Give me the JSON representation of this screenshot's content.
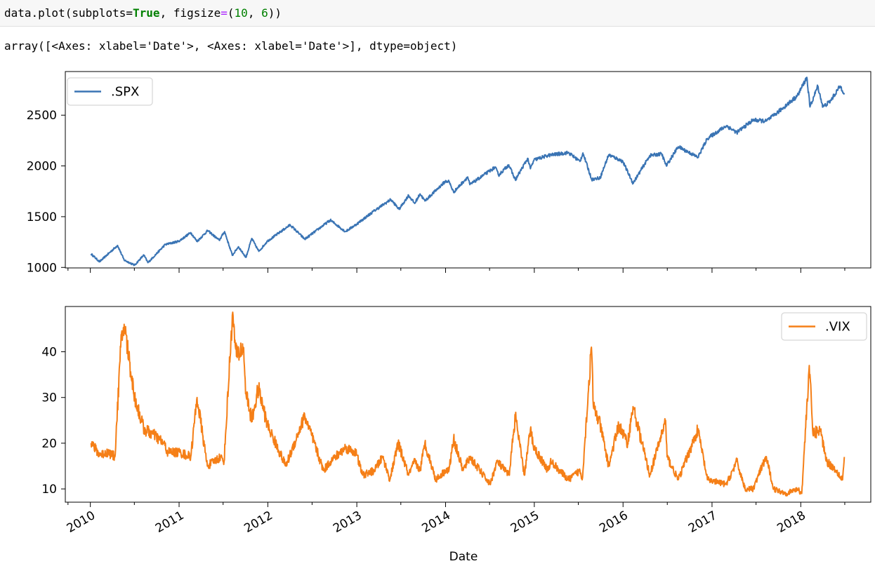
{
  "code": {
    "prefix": "data.plot(subplots=",
    "kw_true": "True",
    "mid": ", figsize",
    "eq": "=",
    "paren_open": "(",
    "n1": "10",
    "comma": ", ",
    "n2": "6",
    "suffix": "))"
  },
  "output_text": "array([<Axes: xlabel='Date'>, <Axes: xlabel='Date'>], dtype=object)",
  "colors": {
    "spx": "#3a74b4",
    "vix": "#f57f17"
  },
  "chart_data": [
    {
      "type": "line",
      "series": [
        {
          "name": ".SPX",
          "x": [
            "2010-01-04",
            "2010-02-08",
            "2010-04-23",
            "2010-05-20",
            "2010-07-02",
            "2010-08-09",
            "2010-08-26",
            "2010-11-05",
            "2010-12-31",
            "2011-02-18",
            "2011-03-16",
            "2011-04-29",
            "2011-06-15",
            "2011-07-07",
            "2011-08-08",
            "2011-09-02",
            "2011-10-03",
            "2011-10-27",
            "2011-11-25",
            "2011-12-30",
            "2012-04-02",
            "2012-06-01",
            "2012-09-14",
            "2012-11-15",
            "2012-12-31",
            "2013-03-15",
            "2013-05-21",
            "2013-06-24",
            "2013-08-02",
            "2013-08-27",
            "2013-09-18",
            "2013-10-08",
            "2013-12-31",
            "2014-01-15",
            "2014-02-03",
            "2014-04-02",
            "2014-04-11",
            "2014-07-24",
            "2014-08-07",
            "2014-09-18",
            "2014-10-15",
            "2014-12-05",
            "2014-12-16",
            "2014-12-31",
            "2015-02-27",
            "2015-05-21",
            "2015-07-08",
            "2015-07-20",
            "2015-08-25",
            "2015-09-29",
            "2015-11-03",
            "2015-12-31",
            "2016-02-11",
            "2016-04-20",
            "2016-06-08",
            "2016-06-27",
            "2016-08-15",
            "2016-11-04",
            "2016-12-13",
            "2017-03-01",
            "2017-04-13",
            "2017-06-19",
            "2017-08-11",
            "2017-09-12",
            "2017-12-18",
            "2018-01-26",
            "2018-02-08",
            "2018-03-12",
            "2018-04-02",
            "2018-05-02",
            "2018-06-12",
            "2018-06-29"
          ],
          "values": [
            1133,
            1056,
            1217,
            1072,
            1022,
            1122,
            1047,
            1225,
            1258,
            1343,
            1256,
            1363,
            1267,
            1353,
            1119,
            1204,
            1099,
            1285,
            1158,
            1258,
            1419,
            1278,
            1466,
            1353,
            1426,
            1560,
            1669,
            1573,
            1710,
            1630,
            1725,
            1655,
            1848,
            1848,
            1741,
            1891,
            1815,
            1988,
            1909,
            2011,
            1862,
            2075,
            1972,
            2059,
            2104,
            2131,
            2044,
            2128,
            1867,
            1884,
            2110,
            2044,
            1829,
            2102,
            2119,
            2001,
            2190,
            2085,
            2271,
            2396,
            2329,
            2453,
            2441,
            2496,
            2690,
            2873,
            2581,
            2787,
            2581,
            2636,
            2786,
            2718
          ]
        }
      ],
      "ylim": [
        995,
        2930
      ],
      "yticks": [
        1000,
        1500,
        2000,
        2500
      ],
      "legend": "upper-left"
    },
    {
      "type": "line",
      "series": [
        {
          "name": ".VIX",
          "x": [
            "2010-01-04",
            "2010-02-08",
            "2010-03-15",
            "2010-04-12",
            "2010-05-06",
            "2010-05-20",
            "2010-07-02",
            "2010-08-10",
            "2010-09-15",
            "2010-10-29",
            "2010-11-16",
            "2011-01-04",
            "2011-02-18",
            "2011-03-16",
            "2011-04-27",
            "2011-06-20",
            "2011-07-05",
            "2011-08-08",
            "2011-08-25",
            "2011-09-22",
            "2011-10-03",
            "2011-10-27",
            "2011-11-23",
            "2011-12-30",
            "2012-03-15",
            "2012-06-01",
            "2012-08-17",
            "2012-09-14",
            "2012-11-15",
            "2012-12-28",
            "2013-01-25",
            "2013-03-13",
            "2013-04-18",
            "2013-05-17",
            "2013-06-20",
            "2013-08-02",
            "2013-08-27",
            "2013-09-18",
            "2013-10-08",
            "2013-11-22",
            "2013-12-31",
            "2014-01-15",
            "2014-02-03",
            "2014-03-14",
            "2014-04-11",
            "2014-07-03",
            "2014-08-01",
            "2014-09-19",
            "2014-10-15",
            "2014-11-21",
            "2014-12-16",
            "2014-12-31",
            "2015-02-27",
            "2015-03-11",
            "2015-05-21",
            "2015-07-08",
            "2015-07-17",
            "2015-08-24",
            "2015-09-01",
            "2015-09-29",
            "2015-11-03",
            "2015-12-14",
            "2016-01-20",
            "2016-02-11",
            "2016-04-20",
            "2016-06-24",
            "2016-06-30",
            "2016-08-15",
            "2016-11-04",
            "2016-12-13",
            "2017-03-01",
            "2017-04-13",
            "2017-05-17",
            "2017-06-19",
            "2017-08-11",
            "2017-09-12",
            "2017-11-03",
            "2017-12-18",
            "2018-01-05",
            "2018-02-05",
            "2018-02-20",
            "2018-03-22",
            "2018-04-18",
            "2018-05-28",
            "2018-06-22",
            "2018-06-29"
          ],
          "values": [
            20,
            17.5,
            18,
            17,
            41,
            46,
            30,
            23,
            22,
            20,
            18,
            18,
            17,
            30,
            15,
            17,
            16,
            48,
            39,
            41,
            31,
            25,
            32,
            24,
            15,
            26,
            14,
            16,
            19,
            18,
            13,
            14,
            17,
            12,
            20,
            13,
            16,
            14,
            20,
            12,
            14,
            14,
            21,
            14,
            17,
            11,
            16,
            13,
            26,
            13,
            23,
            19,
            14,
            16,
            12,
            14,
            12,
            41,
            28,
            24,
            15,
            24,
            20,
            28,
            13,
            25,
            17,
            12,
            23,
            12,
            11,
            16,
            10,
            10,
            17,
            10,
            9,
            10,
            9,
            37,
            22,
            23,
            16,
            14,
            12,
            17
          ]
        }
      ],
      "ylim": [
        7.1,
        49.9
      ],
      "yticks": [
        10,
        20,
        30,
        40
      ],
      "legend": "upper-right"
    }
  ],
  "xaxis": {
    "label": "Date",
    "range": [
      "2009-09-20",
      "2018-10-16"
    ],
    "ticks": [
      {
        "date": "2010-01-01",
        "label": "2010"
      },
      {
        "date": "2011-01-01",
        "label": "2011"
      },
      {
        "date": "2012-01-01",
        "label": "2012"
      },
      {
        "date": "2013-01-01",
        "label": "2013"
      },
      {
        "date": "2014-01-01",
        "label": "2014"
      },
      {
        "date": "2015-01-01",
        "label": "2015"
      },
      {
        "date": "2016-01-01",
        "label": "2016"
      },
      {
        "date": "2017-01-01",
        "label": "2017"
      },
      {
        "date": "2018-01-01",
        "label": "2018"
      }
    ]
  }
}
